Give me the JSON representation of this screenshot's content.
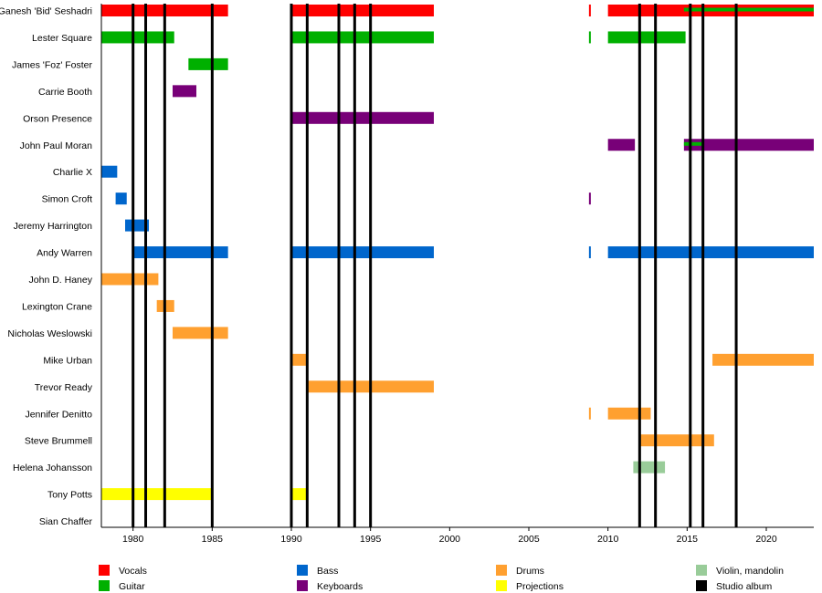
{
  "chart_data": {
    "type": "timeline",
    "xlim": [
      1978,
      2023
    ],
    "x_ticks": [
      1980,
      1985,
      1990,
      1995,
      2000,
      2005,
      2010,
      2015,
      2020
    ],
    "members": [
      "Ganesh 'Bid' Seshadri",
      "Lester Square",
      "James 'Foz' Foster",
      "Carrie Booth",
      "Orson Presence",
      "John Paul Moran",
      "Charlie X",
      "Simon Croft",
      "Jeremy Harrington",
      "Andy Warren",
      "John D. Haney",
      "Lexington Crane",
      "Nicholas Weslowski",
      "Mike Urban",
      "Trevor Ready",
      "Jennifer Denitto",
      "Steve Brummell",
      "Helena Johansson",
      "Tony Potts",
      "Sian Chaffer"
    ],
    "roles": [
      {
        "key": "vocals",
        "name": "Vocals",
        "color": "#ff0000"
      },
      {
        "key": "guitar",
        "name": "Guitar",
        "color": "#00b000"
      },
      {
        "key": "bass",
        "name": "Bass",
        "color": "#0066cc"
      },
      {
        "key": "keyboards",
        "name": "Keyboards",
        "color": "#780078"
      },
      {
        "key": "drums",
        "name": "Drums",
        "color": "#ffa030"
      },
      {
        "key": "projections",
        "name": "Projections",
        "color": "#ffff00"
      },
      {
        "key": "violin",
        "name": "Violin, mandolin",
        "color": "#99cc99"
      },
      {
        "key": "album",
        "name": "Studio album",
        "color": "#000000"
      }
    ],
    "bars": [
      {
        "member": 0,
        "role": "vocals",
        "start": 1978,
        "end": 1986
      },
      {
        "member": 0,
        "role": "vocals",
        "start": 1990,
        "end": 1999
      },
      {
        "member": 0,
        "role": "vocals",
        "start": 2008.8,
        "end": 2008.9
      },
      {
        "member": 0,
        "role": "vocals",
        "start": 2010,
        "end": 2023
      },
      {
        "member": 0,
        "role": "guitar",
        "start": 2014.8,
        "end": 2023,
        "thin": true
      },
      {
        "member": 1,
        "role": "guitar",
        "start": 1978,
        "end": 1982.6
      },
      {
        "member": 1,
        "role": "guitar",
        "start": 1990,
        "end": 1999
      },
      {
        "member": 1,
        "role": "guitar",
        "start": 2008.8,
        "end": 2008.9
      },
      {
        "member": 1,
        "role": "guitar",
        "start": 2010,
        "end": 2014.9
      },
      {
        "member": 2,
        "role": "guitar",
        "start": 1983.5,
        "end": 1986
      },
      {
        "member": 3,
        "role": "keyboards",
        "start": 1982.5,
        "end": 1984
      },
      {
        "member": 4,
        "role": "keyboards",
        "start": 1990,
        "end": 1999
      },
      {
        "member": 5,
        "role": "keyboards",
        "start": 2010,
        "end": 2011.7
      },
      {
        "member": 5,
        "role": "keyboards",
        "start": 2014.8,
        "end": 2023
      },
      {
        "member": 5,
        "role": "guitar",
        "start": 2014.8,
        "end": 2016,
        "thin": true
      },
      {
        "member": 6,
        "role": "bass",
        "start": 1978,
        "end": 1979
      },
      {
        "member": 7,
        "role": "bass",
        "start": 1978.9,
        "end": 1979.6
      },
      {
        "member": 7,
        "role": "keyboards",
        "start": 2008.8,
        "end": 2008.9
      },
      {
        "member": 8,
        "role": "bass",
        "start": 1979.5,
        "end": 1981
      },
      {
        "member": 9,
        "role": "bass",
        "start": 1980,
        "end": 1986
      },
      {
        "member": 9,
        "role": "bass",
        "start": 1990,
        "end": 1999
      },
      {
        "member": 9,
        "role": "bass",
        "start": 2008.8,
        "end": 2008.9
      },
      {
        "member": 9,
        "role": "bass",
        "start": 2010,
        "end": 2023
      },
      {
        "member": 10,
        "role": "drums",
        "start": 1978,
        "end": 1981.6
      },
      {
        "member": 11,
        "role": "drums",
        "start": 1981.5,
        "end": 1982.6
      },
      {
        "member": 12,
        "role": "drums",
        "start": 1982.5,
        "end": 1986
      },
      {
        "member": 13,
        "role": "drums",
        "start": 1990,
        "end": 1991
      },
      {
        "member": 13,
        "role": "drums",
        "start": 2016.6,
        "end": 2023
      },
      {
        "member": 14,
        "role": "drums",
        "start": 1991,
        "end": 1999
      },
      {
        "member": 15,
        "role": "drums",
        "start": 2008.8,
        "end": 2008.9
      },
      {
        "member": 15,
        "role": "drums",
        "start": 2010,
        "end": 2012.7
      },
      {
        "member": 16,
        "role": "drums",
        "start": 2012,
        "end": 2016.7
      },
      {
        "member": 17,
        "role": "violin",
        "start": 2011.6,
        "end": 2013.6
      },
      {
        "member": 18,
        "role": "projections",
        "start": 1978,
        "end": 1985
      },
      {
        "member": 18,
        "role": "projections",
        "start": 1990,
        "end": 1991
      }
    ],
    "albums": [
      1980,
      1980.8,
      1982,
      1985,
      1990,
      1991,
      1993,
      1994,
      1995,
      2012,
      2013,
      2015.2,
      2016,
      2018.1
    ],
    "legend_placement": "bottom",
    "grid": false
  }
}
